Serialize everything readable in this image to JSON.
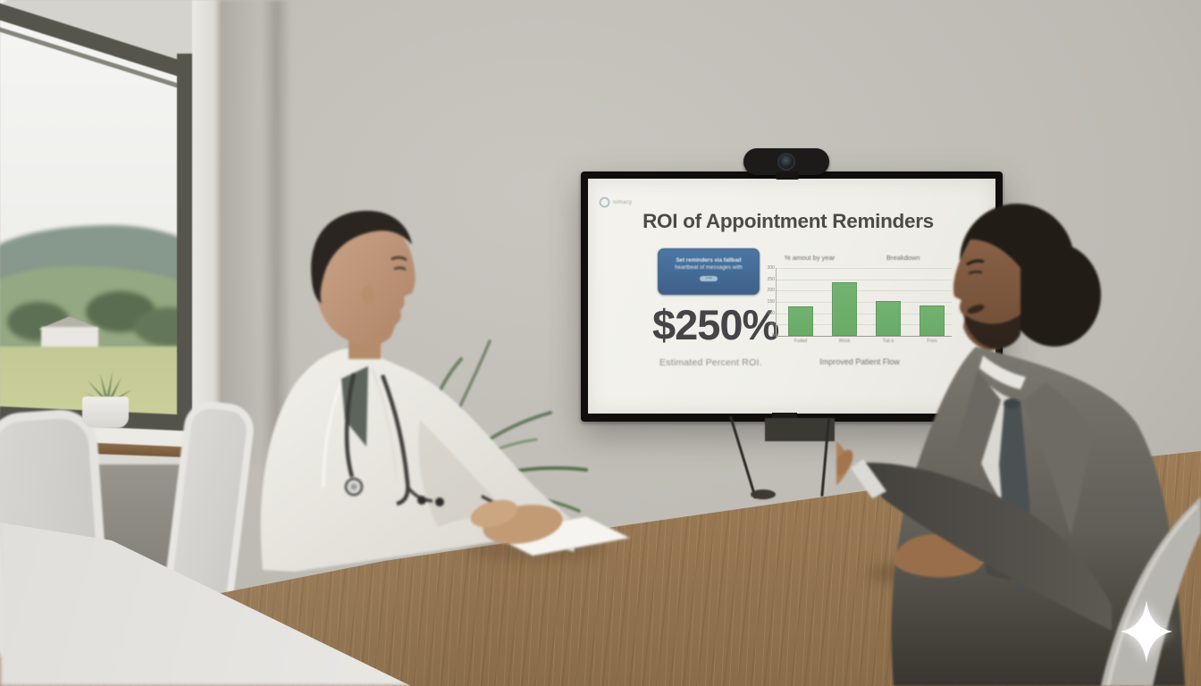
{
  "scene": {
    "setting": "conference-room",
    "people": [
      {
        "role": "doctor",
        "position": "left",
        "attire": "white lab coat with stethoscope, taking notes"
      },
      {
        "role": "consultant",
        "position": "right",
        "attire": "gray suit and tie, gesturing toward screen"
      }
    ],
    "props": [
      "wall-mounted tv with webcam",
      "wooden conference table",
      "window with countryside view",
      "potted palm plant",
      "white office chairs"
    ]
  },
  "tv_slide": {
    "logo_text": "nimacy",
    "title": "ROI of Appointment Reminders",
    "callout": {
      "line1": "Set reminders via fallbad",
      "line2": "heartbeat of messages with",
      "button_glyph": "⟶"
    },
    "stat_value": "$250%",
    "stat_caption": "Estimated Percent ROI."
  },
  "chart_data": {
    "type": "bar",
    "title": "% amout by year",
    "legend_right": "Breakdown",
    "categories": [
      "Fudad",
      "Wock",
      "Tuk a",
      "Foss"
    ],
    "values": [
      130,
      235,
      155,
      135
    ],
    "ylim": [
      0,
      300
    ],
    "yticks": [
      300,
      250,
      200,
      150,
      100,
      50,
      0
    ],
    "grid": true,
    "legend_position": "top",
    "caption": "Improved Patient Flow",
    "bar_color": "#6aab68"
  },
  "watermark": {
    "icon": "four-point-sparkle"
  },
  "colors": {
    "accent_blue": "#4b77a4",
    "bar_green": "#6aab68",
    "slide_bg": "#f1f0ea",
    "suit_gray": "#6e6b64",
    "wall_gray": "#bdbab4",
    "table_wood": "#a9875f"
  }
}
